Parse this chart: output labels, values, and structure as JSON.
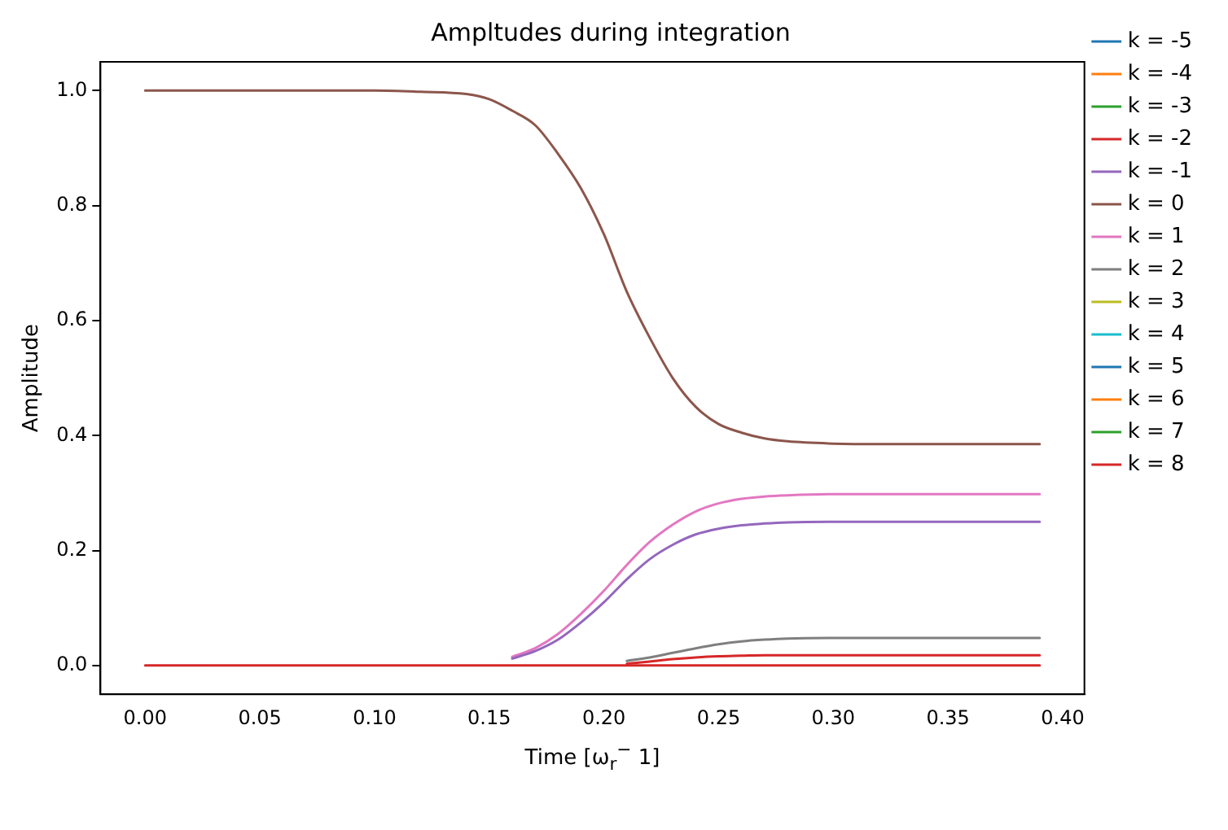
{
  "chart_data": {
    "type": "line",
    "title": "Ampltudes during integration",
    "xlabel": "Time [ω$_{r}$$^{−}$ 1]",
    "ylabel": "Amplitude",
    "x": [
      0,
      0.05,
      0.1,
      0.12,
      0.14,
      0.15,
      0.16,
      0.17,
      0.18,
      0.19,
      0.2,
      0.21,
      0.22,
      0.23,
      0.24,
      0.25,
      0.26,
      0.27,
      0.28,
      0.3,
      0.32,
      0.35,
      0.39
    ],
    "xlim": [
      -0.0195,
      0.4095
    ],
    "ylim": [
      -0.05,
      1.05
    ],
    "xticks": [
      {
        "value": 0,
        "label": "0.00"
      },
      {
        "value": 0.05,
        "label": "0.05"
      },
      {
        "value": 0.1,
        "label": "0.10"
      },
      {
        "value": 0.15,
        "label": "0.15"
      },
      {
        "value": 0.2,
        "label": "0.20"
      },
      {
        "value": 0.25,
        "label": "0.25"
      },
      {
        "value": 0.3,
        "label": "0.30"
      },
      {
        "value": 0.35,
        "label": "0.35"
      },
      {
        "value": 0.4,
        "label": "0.40"
      }
    ],
    "yticks": [
      {
        "value": 0,
        "label": "0.0"
      },
      {
        "value": 0.2,
        "label": "0.2"
      },
      {
        "value": 0.4,
        "label": "0.4"
      },
      {
        "value": 0.6,
        "label": "0.6"
      },
      {
        "value": 0.8,
        "label": "0.8"
      },
      {
        "value": 1,
        "label": "1.0"
      }
    ],
    "legend": "right",
    "marker": "none",
    "line_style": "solid",
    "series": [
      {
        "name": "k = -5",
        "color": "#1f77b4",
        "values": [
          null,
          null,
          null,
          null,
          null,
          null,
          null,
          null,
          null,
          null,
          null,
          null,
          null,
          null,
          null,
          null,
          null,
          null,
          null,
          null,
          null,
          null,
          null
        ]
      },
      {
        "name": "k = -4",
        "color": "#ff7f0e",
        "values": [
          null,
          null,
          null,
          null,
          null,
          null,
          null,
          null,
          null,
          null,
          null,
          null,
          null,
          null,
          null,
          null,
          null,
          null,
          null,
          null,
          null,
          null,
          null
        ]
      },
      {
        "name": "k = -3",
        "color": "#2ca02c",
        "values": [
          null,
          null,
          null,
          null,
          null,
          null,
          null,
          null,
          null,
          null,
          null,
          null,
          null,
          null,
          null,
          null,
          null,
          null,
          null,
          null,
          null,
          null,
          null
        ]
      },
      {
        "name": "k = -2",
        "color": "#d62728",
        "values": [
          null,
          null,
          null,
          null,
          null,
          null,
          null,
          null,
          null,
          null,
          null,
          0.003,
          0.007,
          0.011,
          0.014,
          0.016,
          0.017,
          0.018,
          0.018,
          0.018,
          0.018,
          0.018,
          0.018
        ]
      },
      {
        "name": "k = -1",
        "color": "#9467bd",
        "values": [
          null,
          null,
          null,
          null,
          null,
          null,
          0.012,
          0.025,
          0.045,
          0.075,
          0.11,
          0.15,
          0.185,
          0.21,
          0.228,
          0.238,
          0.244,
          0.247,
          0.249,
          0.25,
          0.25,
          0.25,
          0.25
        ]
      },
      {
        "name": "k = 0",
        "color": "#8c564b",
        "values": [
          1,
          1,
          1,
          0.998,
          0.994,
          0.985,
          0.965,
          0.94,
          0.89,
          0.83,
          0.75,
          0.65,
          0.57,
          0.5,
          0.45,
          0.42,
          0.405,
          0.395,
          0.39,
          0.386,
          0.385,
          0.385,
          0.385
        ]
      },
      {
        "name": "k = 1",
        "color": "#e377c2",
        "values": [
          null,
          null,
          null,
          null,
          null,
          null,
          0.015,
          0.03,
          0.055,
          0.09,
          0.13,
          0.175,
          0.215,
          0.245,
          0.268,
          0.282,
          0.29,
          0.294,
          0.296,
          0.298,
          0.298,
          0.298,
          0.298
        ]
      },
      {
        "name": "k = 2",
        "color": "#7f7f7f",
        "values": [
          null,
          null,
          null,
          null,
          null,
          null,
          null,
          null,
          null,
          null,
          null,
          0.008,
          0.014,
          0.022,
          0.03,
          0.037,
          0.042,
          0.045,
          0.047,
          0.048,
          0.048,
          0.048,
          0.048
        ]
      },
      {
        "name": "k = 3",
        "color": "#bcbd22",
        "values": [
          null,
          null,
          null,
          null,
          null,
          null,
          null,
          null,
          null,
          null,
          null,
          null,
          null,
          null,
          null,
          null,
          null,
          null,
          null,
          null,
          null,
          null,
          null
        ]
      },
      {
        "name": "k = 4",
        "color": "#17becf",
        "values": [
          null,
          null,
          null,
          null,
          null,
          null,
          null,
          null,
          null,
          null,
          null,
          null,
          null,
          null,
          null,
          null,
          null,
          null,
          null,
          null,
          null,
          null,
          null
        ]
      },
      {
        "name": "k = 5",
        "color": "#1f77b4",
        "values": [
          null,
          null,
          null,
          null,
          null,
          null,
          null,
          null,
          null,
          null,
          null,
          null,
          null,
          null,
          null,
          null,
          null,
          null,
          null,
          null,
          null,
          null,
          null
        ]
      },
      {
        "name": "k = 6",
        "color": "#ff7f0e",
        "values": [
          null,
          null,
          null,
          null,
          null,
          null,
          null,
          null,
          null,
          null,
          null,
          null,
          null,
          null,
          null,
          null,
          null,
          null,
          null,
          null,
          null,
          null,
          null
        ]
      },
      {
        "name": "k = 7",
        "color": "#2ca02c",
        "values": [
          null,
          null,
          null,
          null,
          null,
          null,
          null,
          null,
          null,
          null,
          null,
          null,
          null,
          null,
          null,
          null,
          null,
          null,
          null,
          null,
          null,
          null,
          null
        ]
      },
      {
        "name": "k = 8",
        "color": "#d62728",
        "values": [
          0,
          0,
          0,
          0,
          0,
          0,
          0,
          0,
          0,
          0,
          0,
          0,
          0,
          0,
          0,
          0,
          0,
          0,
          0,
          0,
          0,
          0,
          0
        ]
      }
    ]
  }
}
